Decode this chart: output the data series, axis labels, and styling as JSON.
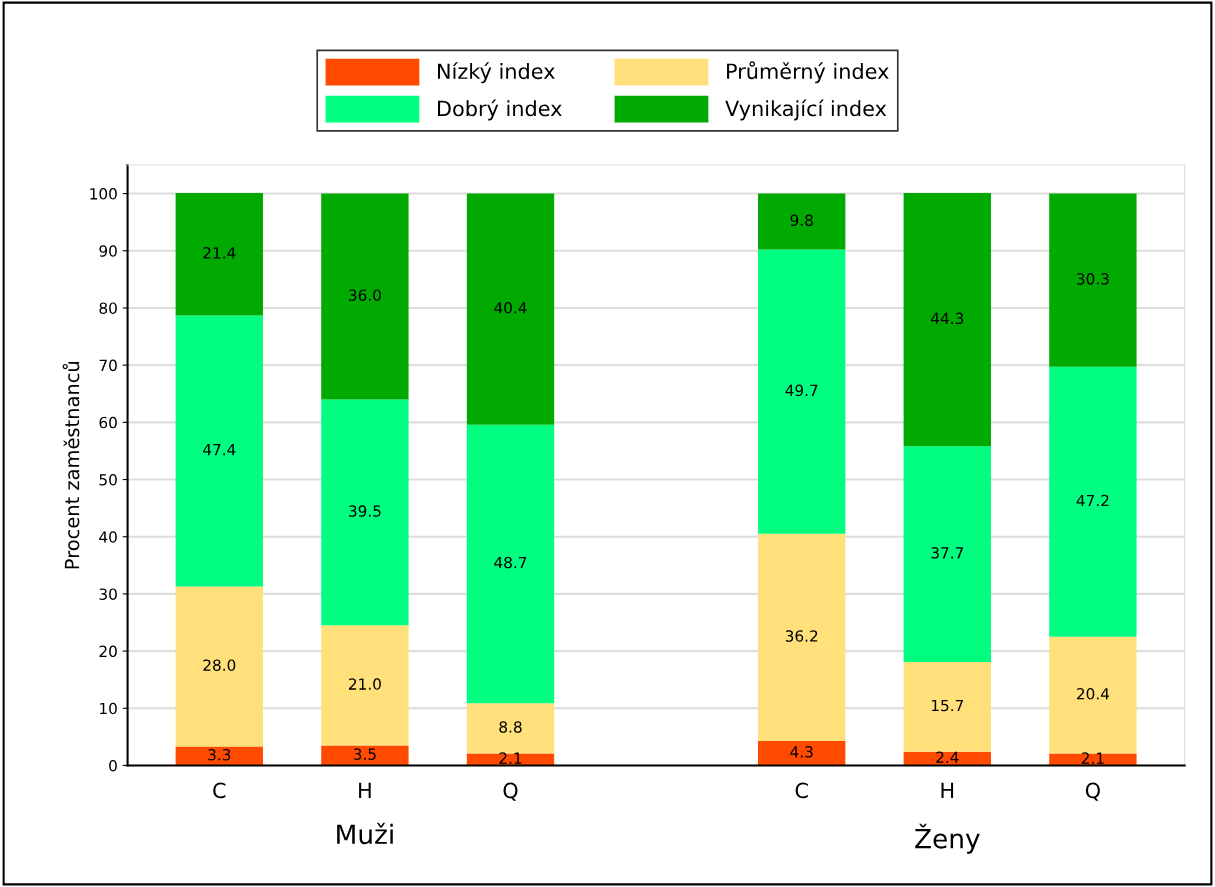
{
  "chart_data": {
    "type": "bar",
    "stacked": true,
    "ylabel": "Procent zaměstnanců",
    "categories": [
      "C",
      "H",
      "Q",
      null,
      "C",
      "H",
      "Q"
    ],
    "series": [
      {
        "name": "Nízký index",
        "color": "#ff4a00",
        "values": [
          3.3,
          3.5,
          2.1,
          null,
          4.3,
          2.4,
          2.1
        ],
        "value_labels": [
          "3.3",
          "3.5",
          "2.1",
          null,
          "4.3",
          "2.4",
          "2.1"
        ]
      },
      {
        "name": "Průměrný index",
        "color": "#ffe07a",
        "values": [
          28.0,
          21.0,
          8.8,
          null,
          36.2,
          15.7,
          20.4
        ],
        "value_labels": [
          "28.0",
          "21.0",
          "8.8",
          null,
          "36.2",
          "15.7",
          "20.4"
        ]
      },
      {
        "name": "Dobrý index",
        "color": "#00ff80",
        "values": [
          47.4,
          39.5,
          48.7,
          null,
          49.7,
          37.7,
          47.2
        ],
        "value_labels": [
          "47.4",
          "39.5",
          "48.7",
          null,
          "49.7",
          "37.7",
          "47.2"
        ]
      },
      {
        "name": "Vynikající index",
        "color": "#00aa00",
        "values": [
          21.4,
          36.0,
          40.4,
          null,
          9.8,
          44.3,
          30.3
        ],
        "value_labels": [
          "21.4",
          "36.0",
          "40.4",
          null,
          "9.8",
          "44.3",
          "30.3"
        ]
      }
    ],
    "ylim": [
      0,
      105
    ],
    "yticks": [
      0,
      10,
      20,
      30,
      40,
      50,
      60,
      70,
      80,
      90,
      100
    ],
    "grid": "y",
    "legend": "top",
    "annotations": [
      "Muži",
      "Ženy"
    ]
  }
}
